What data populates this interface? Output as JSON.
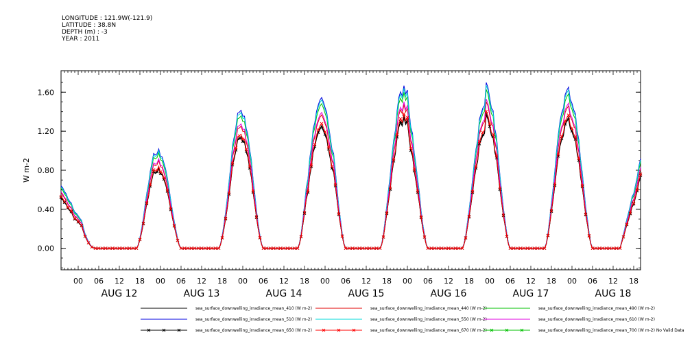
{
  "header": {
    "lines": [
      "LONGITUDE : 121.9W(-121.9)",
      "LATITUDE : 38.8N",
      "DEPTH (m) : -3",
      "YEAR : 2011"
    ]
  },
  "chart_data": {
    "type": "line",
    "ylabel": "W m-2",
    "xlabel": "",
    "ylim": [
      -0.22,
      1.82
    ],
    "yticks": [
      "0.00",
      "0.40",
      "0.80",
      "1.20",
      "1.60"
    ],
    "x_range_hours": [
      -5,
      164
    ],
    "hour_ticks": [
      "00",
      "06",
      "12",
      "18",
      "00",
      "06",
      "12",
      "18",
      "00",
      "06",
      "12",
      "18",
      "00",
      "06",
      "12",
      "18",
      "00",
      "06",
      "12",
      "18",
      "00",
      "06",
      "12",
      "18",
      "00",
      "06",
      "12",
      "18"
    ],
    "day_labels": [
      "AUG 12",
      "AUG 13",
      "AUG 14",
      "AUG 15",
      "AUG 16",
      "AUG 17",
      "AUG 18"
    ],
    "days": [
      {
        "start": 17,
        "end": 30,
        "peak": 0.85
      },
      {
        "start": 41,
        "end": 54,
        "peak": 1.12
      },
      {
        "start": 64,
        "end": 78,
        "peak": 1.33
      },
      {
        "start": 88,
        "end": 102,
        "peak": 1.3
      },
      {
        "start": 112,
        "end": 126,
        "peak": 1.3
      },
      {
        "start": 136,
        "end": 150,
        "peak": 1.38
      }
    ],
    "series": [
      {
        "name": "sea_surface_downwelling_irradiance_mean_410 (W m-2)",
        "color": "#000000",
        "scale": 0.97,
        "marker": false
      },
      {
        "name": "sea_surface_downwelling_irradiance_mean_440 (W m-2)",
        "color": "#e00000",
        "scale": 1.07,
        "marker": false
      },
      {
        "name": "sea_surface_downwelling_irradiance_mean_490 (W m-2)",
        "color": "#00c000",
        "scale": 1.16,
        "marker": false
      },
      {
        "name": "sea_surface_downwelling_irradiance_mean_510 (W m-2)",
        "color": "#0000e0",
        "scale": 1.21,
        "marker": false
      },
      {
        "name": "sea_surface_downwelling_irradiance_mean_550 (W m-2)",
        "color": "#00d8d8",
        "scale": 1.19,
        "marker": false
      },
      {
        "name": "sea_surface_downwelling_irradiance_mean_610 (W m-2)",
        "color": "#e000e0",
        "scale": 1.09,
        "marker": false
      },
      {
        "name": "sea_surface_downwelling_irradiance_mean_650 (W m-2)",
        "color": "#000000",
        "scale": 0.98,
        "marker": true
      },
      {
        "name": "sea_surface_downwelling_irradiance_mean_670 (W m-2)",
        "color": "#ff0000",
        "scale": 1.0,
        "marker": true
      },
      {
        "name": "sea_surface_downwelling_irradiance_mean_700 (W m-2) No Valid Data",
        "color": "#00c000",
        "scale": 0,
        "marker": true
      }
    ]
  }
}
